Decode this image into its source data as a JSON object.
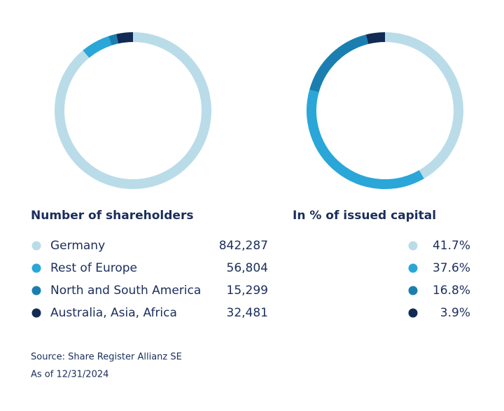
{
  "chart_data": [
    {
      "type": "donut",
      "title": "Number of shareholders",
      "categories": [
        "Germany",
        "Rest of Europe",
        "North and South America",
        "Australia, Asia, Africa"
      ],
      "values": [
        842287,
        56804,
        15299,
        32481
      ],
      "value_labels": [
        "842,287",
        "56,804",
        "15,299",
        "32,481"
      ],
      "colors": [
        "#b9dce8",
        "#2aa6d9",
        "#1a7fb0",
        "#122b54"
      ]
    },
    {
      "type": "donut",
      "title": "In % of issued capital",
      "values": [
        41.7,
        37.6,
        16.8,
        3.9
      ],
      "value_labels": [
        "41.7%",
        "37.6%",
        "16.8%",
        "3.9%"
      ],
      "colors": [
        "#b9dce8",
        "#2aa6d9",
        "#1a7fb0",
        "#122b54"
      ]
    }
  ],
  "source": "Source: Share Register Allianz SE",
  "date_note": "As of 12/31/2024"
}
